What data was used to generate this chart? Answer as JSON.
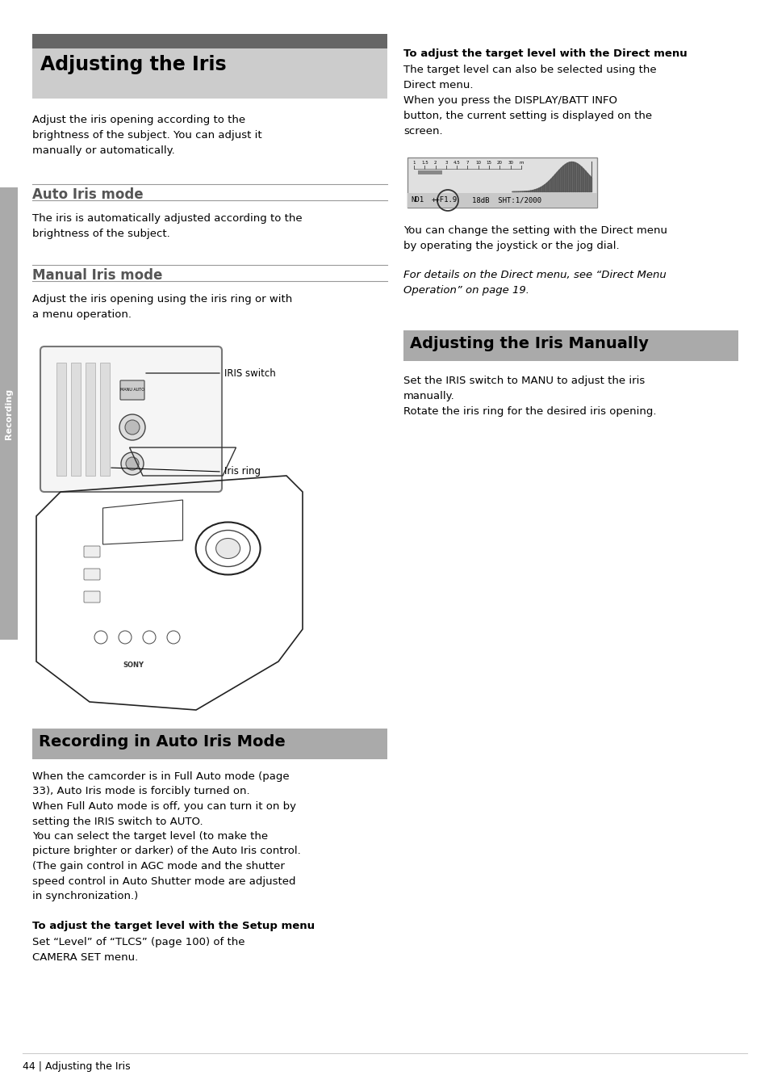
{
  "page_bg": "#ffffff",
  "section1_title": "Adjusting the Iris",
  "section1_intro": "Adjust the iris opening according to the\nbrightness of the subject. You can adjust it\nmanually or automatically.",
  "subsection1_title": "Auto Iris mode",
  "subsection1_text": "The iris is automatically adjusted according to the\nbrightness of the subject.",
  "subsection2_title": "Manual Iris mode",
  "subsection2_text": "Adjust the iris opening using the iris ring or with\na menu operation.",
  "label_iris_switch": "IRIS switch",
  "label_iris_ring": "Iris ring",
  "section2_title": "Recording in Auto Iris Mode",
  "section2_para1": "When the camcorder is in Full Auto mode (page\n33), Auto Iris mode is forcibly turned on.\nWhen Full Auto mode is off, you can turn it on by\nsetting the IRIS switch to AUTO.\nYou can select the target level (to make the\npicture brighter or darker) of the Auto Iris control.\n(The gain control in AGC mode and the shutter\nspeed control in Auto Shutter mode are adjusted\nin synchronization.)",
  "bold_label1": "To adjust the target level with the Setup menu",
  "para_setup": "Set “Level” of “TLCS” (page 100) of the\nCAMERA SET menu.",
  "bold_label2": "To adjust the target level with the Direct menu",
  "para_direct1": "The target level can also be selected using the\nDirect menu.\nWhen you press the DISPLAY/BATT INFO\nbutton, the current setting is displayed on the\nscreen.",
  "para_direct2": "You can change the setting with the Direct menu\nby operating the joystick or the jog dial.",
  "para_direct3": "For details on the Direct menu, see “Direct Menu\nOperation” on page 19.",
  "section3_title": "Adjusting the Iris Manually",
  "section3_para1": "Set the IRIS switch to MANU to adjust the iris\nmanually.\nRotate the iris ring for the desired iris opening.",
  "footer_text": "44 | Adjusting the Iris",
  "sidebar_text": "Recording",
  "title_font_size": 17,
  "heading_font_size": 12,
  "body_font_size": 9.5,
  "label_font_size": 8.5,
  "footer_font_size": 9
}
